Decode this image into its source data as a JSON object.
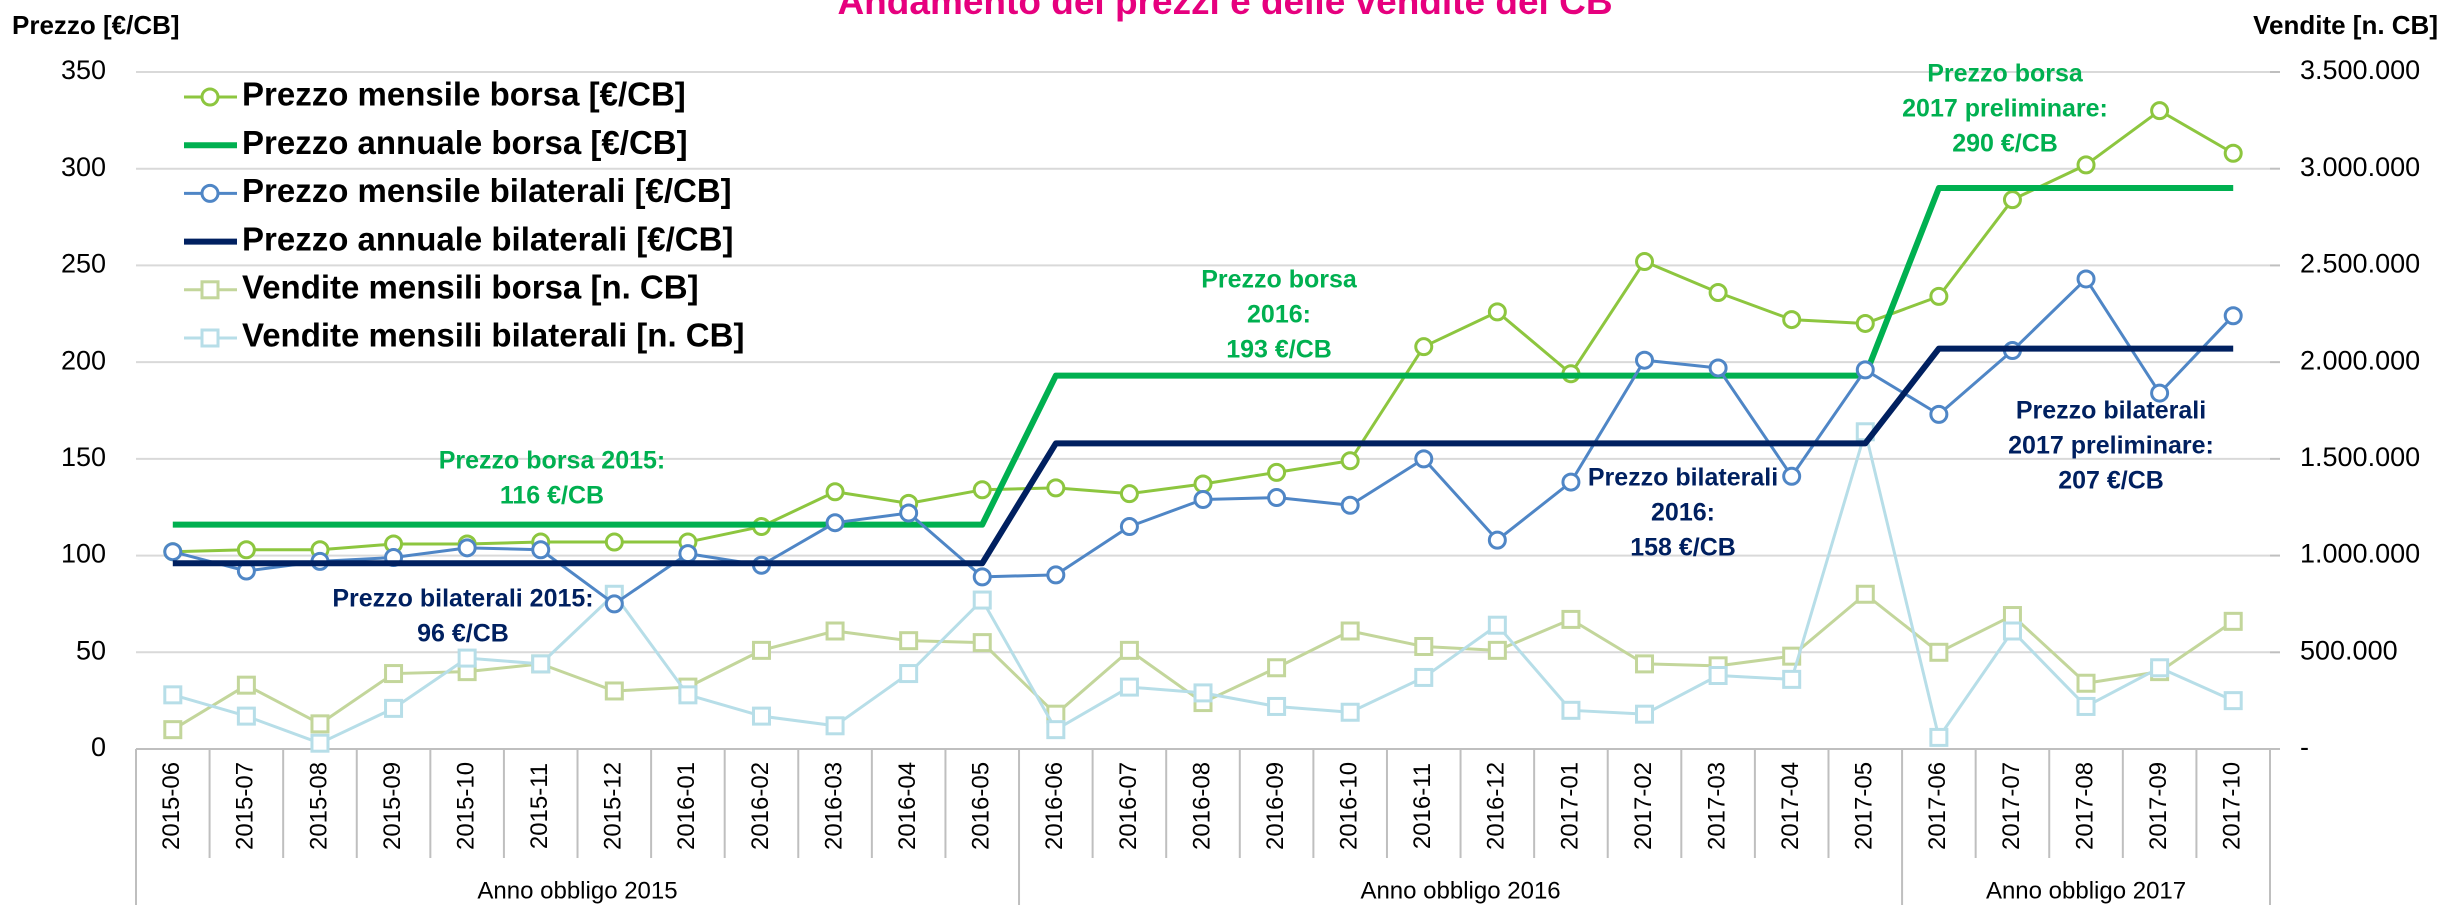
{
  "chart_data": {
    "type": "line",
    "title": "Andamento dei prezzi e delle vendite dei CB",
    "y_label": "Prezzo [€/CB]",
    "y2_label": "Vendite [n. CB]",
    "categories": [
      "2015-06",
      "2015-07",
      "2015-08",
      "2015-09",
      "2015-10",
      "2015-11",
      "2015-12",
      "2016-01",
      "2016-02",
      "2016-03",
      "2016-04",
      "2016-05",
      "2016-06",
      "2016-07",
      "2016-08",
      "2016-09",
      "2016-10",
      "2016-11",
      "2016-12",
      "2017-01",
      "2017-02",
      "2017-03",
      "2017-04",
      "2017-05",
      "2017-06",
      "2017-07",
      "2017-08",
      "2017-09",
      "2017-10"
    ],
    "category_groups": [
      {
        "label": "Anno obbligo 2015",
        "from": "2015-06",
        "to": "2016-05"
      },
      {
        "label": "Anno obbligo 2016",
        "from": "2016-06",
        "to": "2017-05"
      },
      {
        "label": "Anno obbligo 2017",
        "from": "2017-06",
        "to": "2017-10"
      }
    ],
    "ylim": [
      0,
      350
    ],
    "yticks": [
      0,
      50,
      100,
      150,
      200,
      250,
      300,
      350
    ],
    "y2lim": [
      0,
      3500000
    ],
    "y2ticks": [
      {
        "value": 0,
        "label": "-"
      },
      {
        "value": 500000,
        "label": "500.000"
      },
      {
        "value": 1000000,
        "label": "1.000.000"
      },
      {
        "value": 1500000,
        "label": "1.500.000"
      },
      {
        "value": 2000000,
        "label": "2.000.000"
      },
      {
        "value": 2500000,
        "label": "2.500.000"
      },
      {
        "value": 3000000,
        "label": "3.000.000"
      },
      {
        "value": 3500000,
        "label": "3.500.000"
      }
    ],
    "grid": true,
    "legend": "upper left",
    "series": [
      {
        "name": "Prezzo mensile borsa [€/CB]",
        "color": "#8dc63f",
        "marker": "circle",
        "width": 3,
        "values": [
          102,
          103,
          103,
          106,
          106,
          107,
          107,
          107,
          115,
          133,
          127,
          134,
          135,
          132,
          137,
          143,
          149,
          208,
          226,
          194,
          252,
          236,
          222,
          220,
          234,
          284,
          302,
          330,
          308
        ]
      },
      {
        "name": "Prezzo annuale borsa [€/CB]",
        "color": "#00b050",
        "marker": "none",
        "width": 6,
        "values": [
          116,
          116,
          116,
          116,
          116,
          116,
          116,
          116,
          116,
          116,
          116,
          116,
          193,
          193,
          193,
          193,
          193,
          193,
          193,
          193,
          193,
          193,
          193,
          193,
          290,
          290,
          290,
          290,
          290
        ]
      },
      {
        "name": "Prezzo mensile bilaterali [€/CB]",
        "color": "#4f86c6",
        "marker": "circle",
        "width": 3,
        "values": [
          102,
          92,
          97,
          99,
          104,
          103,
          75,
          101,
          95,
          117,
          122,
          89,
          90,
          115,
          129,
          130,
          126,
          150,
          108,
          138,
          201,
          197,
          141,
          196,
          173,
          206,
          243,
          184,
          224
        ]
      },
      {
        "name": "Prezzo annuale bilaterali [€/CB]",
        "color": "#002060",
        "marker": "none",
        "width": 6,
        "values": [
          96,
          96,
          96,
          96,
          96,
          96,
          96,
          96,
          96,
          96,
          96,
          96,
          158,
          158,
          158,
          158,
          158,
          158,
          158,
          158,
          158,
          158,
          158,
          158,
          207,
          207,
          207,
          207,
          207
        ]
      },
      {
        "name": "Vendite mensili borsa [n. CB]",
        "color": "#c3d69b",
        "marker": "square",
        "width": 3,
        "axis": "y2",
        "values": [
          100000,
          330000,
          130000,
          390000,
          400000,
          440000,
          300000,
          320000,
          510000,
          610000,
          560000,
          550000,
          180000,
          510000,
          240000,
          420000,
          610000,
          530000,
          510000,
          670000,
          440000,
          430000,
          480000,
          800000,
          500000,
          690000,
          340000,
          400000,
          660000
        ]
      },
      {
        "name": "Vendite mensili bilaterali [n. CB]",
        "color": "#b7dee8",
        "marker": "square",
        "width": 3,
        "axis": "y2",
        "values": [
          280000,
          170000,
          30000,
          210000,
          470000,
          440000,
          800000,
          280000,
          170000,
          120000,
          390000,
          770000,
          100000,
          320000,
          290000,
          220000,
          190000,
          370000,
          640000,
          200000,
          180000,
          380000,
          360000,
          1640000,
          60000,
          610000,
          220000,
          420000,
          250000
        ]
      }
    ],
    "annotations": [
      {
        "lines": [
          "Prezzo borsa 2015:",
          "116 €/CB"
        ],
        "color": "#00b050"
      },
      {
        "lines": [
          "Prezzo bilaterali 2015:",
          "96 €/CB"
        ],
        "color": "#002060"
      },
      {
        "lines": [
          "Prezzo borsa",
          "2016:",
          "193 €/CB"
        ],
        "color": "#00b050"
      },
      {
        "lines": [
          "Prezzo bilaterali",
          "2016:",
          "158 €/CB"
        ],
        "color": "#002060"
      },
      {
        "lines": [
          "Prezzo borsa",
          "2017 preliminare:",
          "290 €/CB"
        ],
        "color": "#00b050"
      },
      {
        "lines": [
          "Prezzo bilaterali",
          "2017 preliminare:",
          "207 €/CB"
        ],
        "color": "#002060"
      }
    ]
  }
}
